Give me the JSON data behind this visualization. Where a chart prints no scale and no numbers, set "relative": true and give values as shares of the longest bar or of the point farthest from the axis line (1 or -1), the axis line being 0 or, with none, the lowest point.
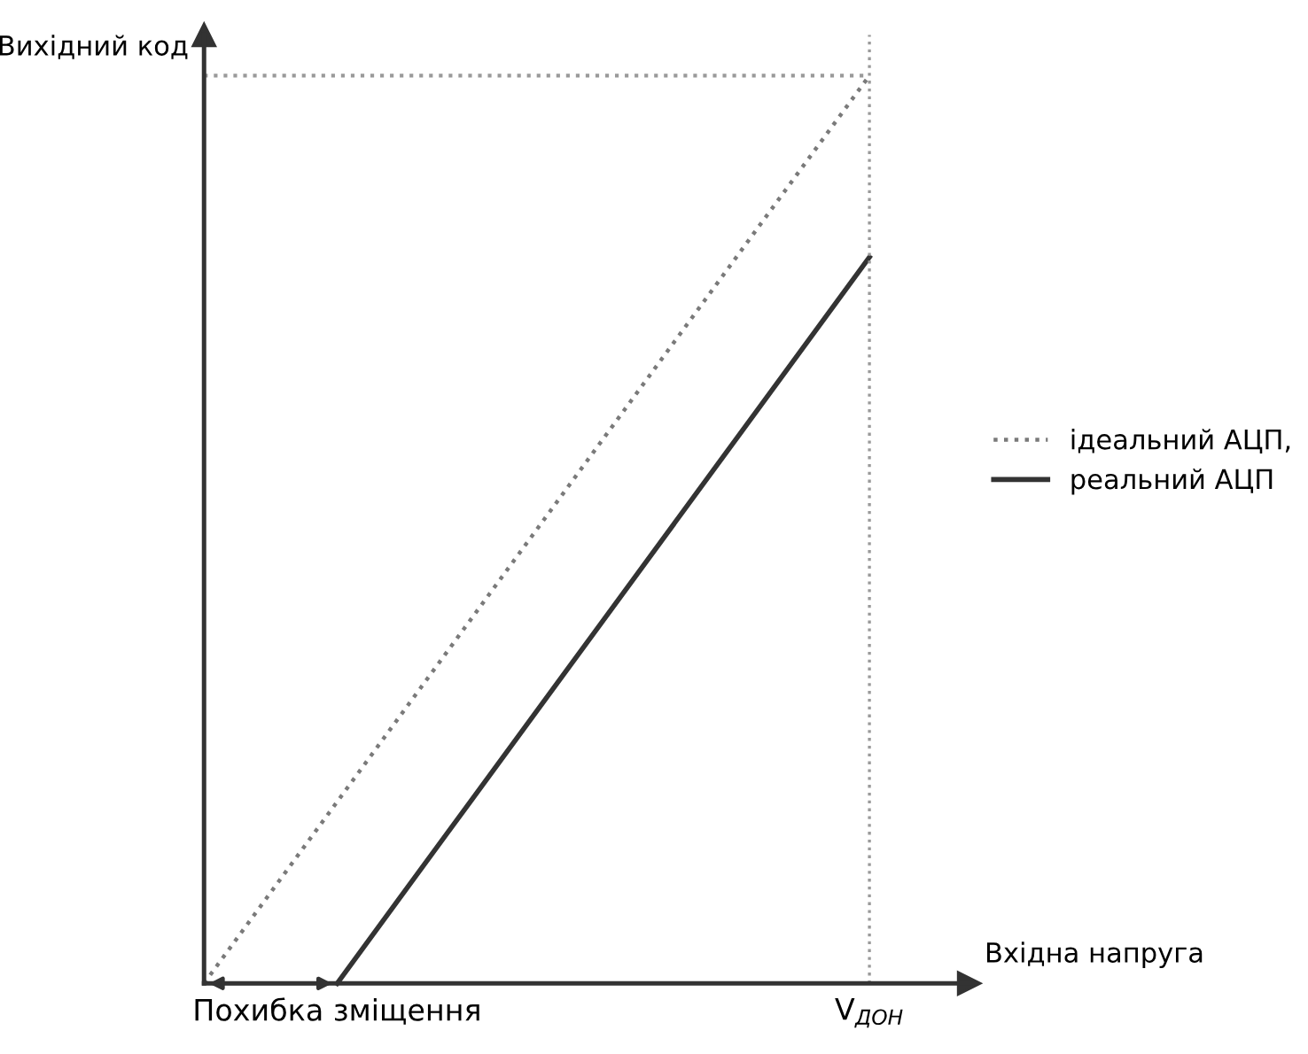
{
  "chart_data": {
    "type": "line",
    "relative": true,
    "xlabel": "Вхідна напруга",
    "ylabel": "Вихідний код",
    "categories": [
      null,
      "Похибка зміщення",
      null,
      null,
      null,
      "V$_{ДОН}$"
    ],
    "tick_labels": "x",
    "grid": false,
    "legend": "right",
    "series": [
      {
        "name": "ідеальний АЦП,",
        "color": "#7a7a7a",
        "values": [
          0,
          0.2,
          0.4,
          0.6,
          0.8,
          1
        ],
        "line_style": "dotted"
      },
      {
        "name": "реальний АЦП",
        "color": "#333333",
        "values": [
          null,
          0,
          0.2,
          0.4,
          0.6,
          0.8
        ],
        "line_style": "solid"
      }
    ],
    "ref_lines": [
      {
        "axis": "x",
        "value": "V$_{ДОН}$",
        "color": "#9a9a9a",
        "line_style": "dotted"
      },
      {
        "axis": "y",
        "value": 1,
        "color": "#9a9a9a",
        "line_style": "dotted"
      }
    ]
  }
}
